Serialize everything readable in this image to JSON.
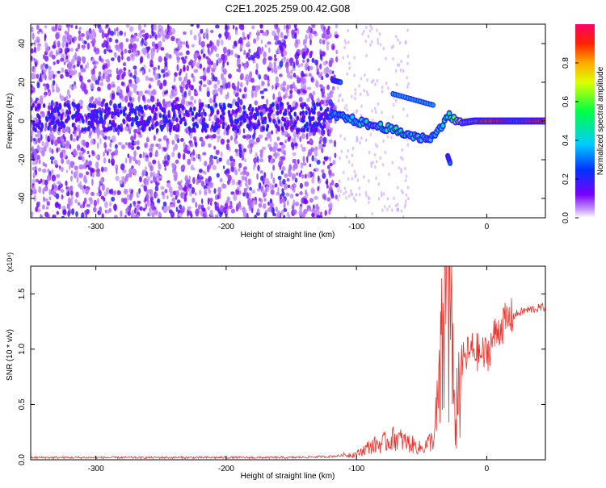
{
  "title": "C2E1.2025.259.00.42.G08",
  "colors": {
    "snr_line": "#e8322c",
    "spectrogram_ramp": [
      "#7a00ff",
      "#0055ff",
      "#00ccff",
      "#00ff66",
      "#ccff00",
      "#ffaa00",
      "#ff2a00",
      "#ff0066"
    ]
  },
  "chart_data": [
    {
      "type": "heatmap",
      "title": "",
      "xlabel": "Height of straight line (km)",
      "ylabel": "Frequency (Hz)",
      "xlim": [
        -350,
        45
      ],
      "ylim": [
        -50,
        50
      ],
      "xticks": [
        -300,
        -200,
        -100,
        0
      ],
      "yticks": [
        -40,
        -20,
        0,
        20,
        40
      ],
      "colorbar": {
        "label": "Normalized spectral amplitude",
        "range": [
          0,
          1
        ],
        "ticks": [
          "0.0",
          "0.2",
          "0.4",
          "0.6",
          "0.8"
        ]
      },
      "ridge": [
        {
          "x": -120,
          "f": 3,
          "amp": 0.35
        },
        {
          "x": -110,
          "f": 2,
          "amp": 0.4
        },
        {
          "x": -100,
          "f": 0,
          "amp": 0.45
        },
        {
          "x": -90,
          "f": -2,
          "amp": 0.5
        },
        {
          "x": -80,
          "f": -3,
          "amp": 0.55
        },
        {
          "x": -70,
          "f": -5,
          "amp": 0.55
        },
        {
          "x": -60,
          "f": -7,
          "amp": 0.5
        },
        {
          "x": -50,
          "f": -9,
          "amp": 0.5
        },
        {
          "x": -40,
          "f": -8,
          "amp": 0.4
        },
        {
          "x": -30,
          "f": 3,
          "amp": 0.5
        },
        {
          "x": -20,
          "f": -1,
          "amp": 0.85
        },
        {
          "x": -10,
          "f": 0,
          "amp": 0.9
        },
        {
          "x": 0,
          "f": 0,
          "amp": 0.95
        },
        {
          "x": 10,
          "f": 0,
          "amp": 1.0
        },
        {
          "x": 20,
          "f": 0,
          "amp": 1.0
        },
        {
          "x": 30,
          "f": 0,
          "amp": 1.0
        },
        {
          "x": 45,
          "f": 0,
          "amp": 1.0
        }
      ],
      "side_branches": [
        {
          "x": [
            -72,
            -40
          ],
          "f": [
            14,
            8
          ],
          "amp": 0.35
        },
        {
          "x": [
            -118,
            -112
          ],
          "f": [
            21,
            20
          ],
          "amp": 0.3
        },
        {
          "x": [
            -30,
            -28
          ],
          "f": [
            -18,
            -22
          ],
          "amp": 0.3
        }
      ]
    },
    {
      "type": "line",
      "title": "",
      "xlabel": "Height of straight line (km)",
      "ylabel": "SNR (10 * v/v)",
      "y_multiplier": "(x10⁴)",
      "xlim": [
        -350,
        45
      ],
      "ylim": [
        0,
        1.75
      ],
      "xticks": [
        -300,
        -200,
        -100,
        0
      ],
      "yticks": [
        0.0,
        0.5,
        1.0,
        1.5
      ],
      "series": [
        {
          "x": [
            -350,
            -300,
            -250,
            -200,
            -150,
            -120,
            -100,
            -90,
            -80,
            -70,
            -60,
            -50,
            -45,
            -40,
            -35,
            -32,
            -30,
            -28,
            -25,
            -22,
            -20,
            -15,
            -10,
            -5,
            0,
            5,
            10,
            15,
            20,
            25,
            30,
            35,
            40,
            45
          ],
          "y": [
            0.02,
            0.02,
            0.02,
            0.02,
            0.02,
            0.03,
            0.05,
            0.12,
            0.15,
            0.2,
            0.15,
            0.1,
            0.15,
            0.2,
            0.8,
            1.4,
            1.0,
            1.5,
            0.3,
            0.6,
            0.85,
            0.95,
            1.0,
            0.95,
            0.95,
            1.1,
            1.2,
            1.25,
            1.3,
            1.33,
            1.35,
            1.36,
            1.37,
            1.38
          ]
        }
      ]
    }
  ]
}
